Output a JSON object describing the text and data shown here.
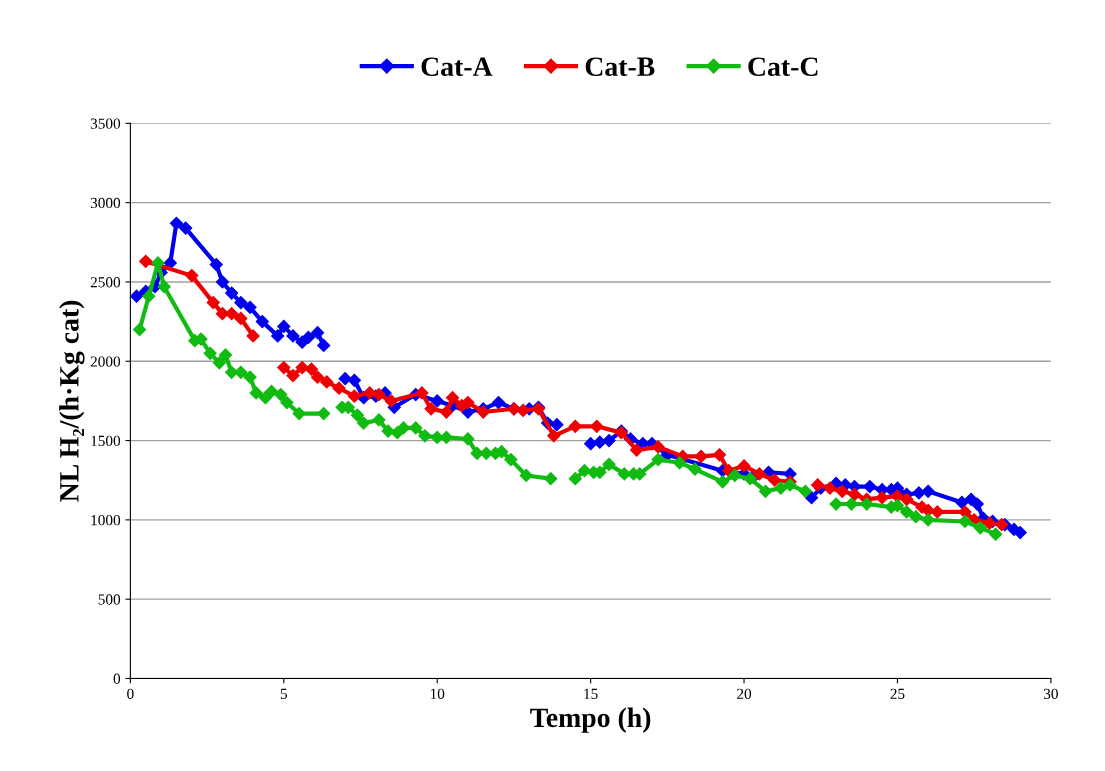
{
  "chart_data": {
    "type": "line",
    "xlabel": "Tempo (h)",
    "ylabel": "NL H₂/(h·Kg cat)",
    "xlim": [
      0,
      30
    ],
    "xticks": [
      0,
      5,
      10,
      15,
      20,
      25,
      30
    ],
    "ylim": [
      0,
      3500
    ],
    "yticks": [
      0,
      500,
      1000,
      1500,
      2000,
      2500,
      3000,
      3500
    ],
    "grid": "y",
    "legend": "top",
    "marker": "diamond",
    "line_style": "solid",
    "series": [
      {
        "name": "Cat-A",
        "color": "#0000ee",
        "x": [
          0.2,
          0.5,
          0.8,
          1.0,
          1.3,
          1.5,
          1.8,
          2.8,
          3.0,
          3.3,
          3.6,
          3.9,
          4.3,
          4.8,
          5.0,
          5.3,
          5.6,
          5.8,
          6.1,
          6.3,
          6.6,
          7.0,
          7.3,
          7.6,
          8.0,
          8.3,
          8.6,
          9.3,
          10.0,
          10.5,
          11.0,
          11.5,
          12.0,
          12.5,
          13.0,
          13.3,
          13.6,
          13.9,
          14.4,
          15.0,
          15.3,
          15.6,
          16.0,
          16.3,
          16.7,
          17.0,
          17.5,
          19.3,
          20.0,
          20.3,
          20.8,
          21.5,
          21.8,
          22.2,
          22.5,
          23.0,
          23.3,
          23.6,
          24.1,
          24.5,
          24.8,
          25.0,
          25.3,
          25.7,
          26.0,
          27.1,
          27.4,
          27.6,
          27.8,
          28.1,
          28.5,
          28.8,
          29.0
        ],
        "values": [
          2410,
          2440,
          2470,
          2560,
          2620,
          2870,
          2840,
          2610,
          2500,
          2430,
          2370,
          2340,
          2250,
          2160,
          2220,
          2160,
          2120,
          2150,
          2180,
          2100,
          null,
          1890,
          1880,
          1770,
          1780,
          1800,
          1710,
          1790,
          1750,
          1720,
          1680,
          1700,
          1740,
          1700,
          1700,
          1710,
          1610,
          1600,
          null,
          1480,
          1490,
          1500,
          1560,
          1510,
          1480,
          1480,
          1410,
          1310,
          1290,
          1270,
          1300,
          1290,
          null,
          1140,
          1200,
          1230,
          1220,
          1210,
          1210,
          1190,
          1190,
          1200,
          1160,
          1170,
          1180,
          1110,
          1130,
          1100,
          1010,
          990,
          970,
          940,
          920
        ]
      },
      {
        "name": "Cat-B",
        "color": "#ee0000",
        "x": [
          0.5,
          2.0,
          2.7,
          3.0,
          3.3,
          3.6,
          4.0,
          4.5,
          5.0,
          5.3,
          5.6,
          5.9,
          6.1,
          6.4,
          6.8,
          7.3,
          7.8,
          8.1,
          8.5,
          9.5,
          9.8,
          10.3,
          10.5,
          10.8,
          11.0,
          11.5,
          12.5,
          12.8,
          13.3,
          13.8,
          14.5,
          15.2,
          16.0,
          16.5,
          17.2,
          18.0,
          18.6,
          19.2,
          19.5,
          20.0,
          20.5,
          21.0,
          21.5,
          22.0,
          22.4,
          22.8,
          23.2,
          23.6,
          24.0,
          24.5,
          25.0,
          25.3,
          25.8,
          26.0,
          26.3,
          27.2,
          27.5,
          28.0,
          28.4
        ],
        "values": [
          2630,
          2540,
          2370,
          2300,
          2300,
          2270,
          2160,
          null,
          1960,
          1910,
          1960,
          1950,
          1900,
          1870,
          1830,
          1780,
          1800,
          1790,
          1750,
          1800,
          1700,
          1680,
          1770,
          1720,
          1740,
          1680,
          1700,
          1690,
          1700,
          1530,
          1590,
          1590,
          1550,
          1440,
          1460,
          1400,
          1400,
          1410,
          1310,
          1340,
          1290,
          1250,
          1240,
          null,
          1220,
          1200,
          1180,
          1160,
          1130,
          1140,
          1150,
          1130,
          1080,
          1060,
          1050,
          1050,
          1000,
          980,
          970
        ]
      },
      {
        "name": "Cat-C",
        "color": "#11bb11",
        "x": [
          0.3,
          0.6,
          0.9,
          1.1,
          2.1,
          2.3,
          2.6,
          2.9,
          3.1,
          3.3,
          3.6,
          3.9,
          4.1,
          4.4,
          4.6,
          4.9,
          5.1,
          5.5,
          6.3,
          6.6,
          6.9,
          7.1,
          7.4,
          7.6,
          8.1,
          8.4,
          8.7,
          8.9,
          9.3,
          9.6,
          10.0,
          10.3,
          11.0,
          11.3,
          11.6,
          11.9,
          12.1,
          12.4,
          12.9,
          13.7,
          14.1,
          14.5,
          14.8,
          15.1,
          15.3,
          15.6,
          16.1,
          16.4,
          16.6,
          17.2,
          17.9,
          18.4,
          19.3,
          19.7,
          20.2,
          20.7,
          21.2,
          21.5,
          22.0,
          22.5,
          23.0,
          23.5,
          24.0,
          24.8,
          25.0,
          25.3,
          25.6,
          26.0,
          27.2,
          27.7,
          28.2
        ],
        "values": [
          2200,
          2410,
          2620,
          2470,
          2130,
          2140,
          2050,
          1990,
          2040,
          1930,
          1930,
          1900,
          1800,
          1770,
          1810,
          1790,
          1740,
          1670,
          1670,
          null,
          1710,
          1710,
          1660,
          1610,
          1630,
          1560,
          1550,
          1580,
          1580,
          1530,
          1520,
          1520,
          1510,
          1420,
          1420,
          1420,
          1430,
          1380,
          1280,
          1260,
          null,
          1260,
          1310,
          1300,
          1300,
          1350,
          1290,
          1290,
          1290,
          1380,
          1360,
          1320,
          1240,
          1280,
          1260,
          1180,
          1200,
          1220,
          1180,
          null,
          1100,
          1100,
          1100,
          1080,
          1090,
          1050,
          1020,
          1000,
          990,
          950,
          910
        ]
      }
    ]
  }
}
